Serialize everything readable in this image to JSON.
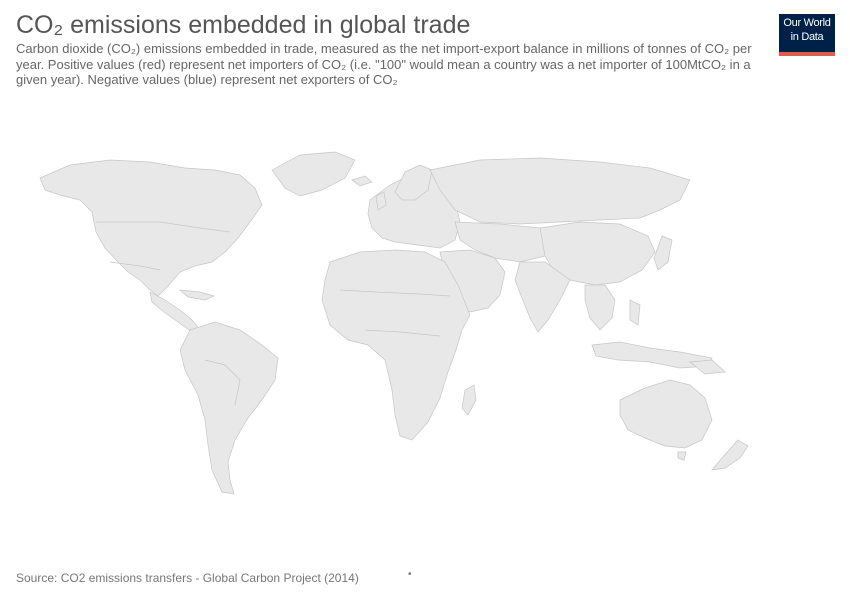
{
  "header": {
    "title": "CO₂ emissions embedded in global trade",
    "subtitle": "Carbon dioxide (CO₂) emissions embedded in trade, measured as the net import-export balance in millions of tonnes of CO₂ per year. Positive values (red) represent net importers of CO₂ (i.e. \"100\" would mean a country was a net importer of 100MtCO₂ in a given year). Negative values (blue) represent net exporters of CO₂"
  },
  "logo": {
    "line1": "Our World",
    "line2": "in Data"
  },
  "footer": {
    "source": "Source: CO2 emissions transfers - Global Carbon Project (2014)",
    "dot": "•"
  },
  "colors": {
    "land": "#e8e8e8",
    "border": "#c6c6c6",
    "logo_bg": "#002147",
    "logo_accent": "#e35c48"
  }
}
